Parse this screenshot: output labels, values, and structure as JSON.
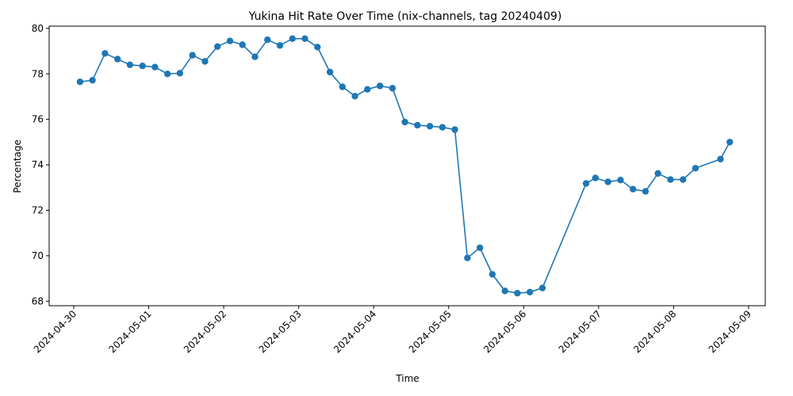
{
  "chart_data": {
    "type": "line",
    "title": "Yukina Hit Rate Over Time (nix-channels, tag 20240409)",
    "xlabel": "Time",
    "ylabel": "Percentage",
    "xlim": [
      "2024-04-29T16:08",
      "2024-05-09T05:20"
    ],
    "ylim": [
      67.8,
      80.1
    ],
    "x_ticks": [
      "2024-04-30",
      "2024-05-01",
      "2024-05-02",
      "2024-05-03",
      "2024-05-04",
      "2024-05-05",
      "2024-05-06",
      "2024-05-07",
      "2024-05-08",
      "2024-05-09"
    ],
    "y_ticks": [
      68,
      70,
      72,
      74,
      76,
      78,
      80
    ],
    "grid": false,
    "line_color": "#1f77b4",
    "marker": "circle",
    "series": [
      {
        "x": [
          "2024-04-30T02:00",
          "2024-04-30T06:00",
          "2024-04-30T10:00",
          "2024-04-30T14:00",
          "2024-04-30T18:00",
          "2024-04-30T22:00",
          "2024-05-01T02:00",
          "2024-05-01T06:00",
          "2024-05-01T10:00",
          "2024-05-01T14:00",
          "2024-05-01T18:00",
          "2024-05-01T22:00",
          "2024-05-02T02:00",
          "2024-05-02T06:00",
          "2024-05-02T10:00",
          "2024-05-02T14:00",
          "2024-05-02T18:00",
          "2024-05-02T22:00",
          "2024-05-03T02:00",
          "2024-05-03T06:00",
          "2024-05-03T10:00",
          "2024-05-03T14:00",
          "2024-05-03T18:00",
          "2024-05-03T22:00",
          "2024-05-04T02:00",
          "2024-05-04T06:00",
          "2024-05-04T10:00",
          "2024-05-04T14:00",
          "2024-05-04T18:00",
          "2024-05-04T22:00",
          "2024-05-05T02:00",
          "2024-05-05T06:00",
          "2024-05-05T10:00",
          "2024-05-05T14:00",
          "2024-05-05T18:00",
          "2024-05-05T22:00",
          "2024-05-06T02:00",
          "2024-05-06T06:00",
          "2024-05-06T20:00",
          "2024-05-06T23:00",
          "2024-05-07T03:00",
          "2024-05-07T07:00",
          "2024-05-07T11:00",
          "2024-05-07T15:00",
          "2024-05-07T19:00",
          "2024-05-07T23:00",
          "2024-05-08T03:00",
          "2024-05-08T07:00",
          "2024-05-08T15:00",
          "2024-05-08T18:00"
        ],
        "values": [
          77.65,
          77.72,
          78.9,
          78.65,
          78.4,
          78.35,
          78.3,
          78.0,
          78.03,
          78.82,
          78.55,
          79.2,
          79.45,
          79.28,
          78.75,
          79.5,
          79.25,
          79.55,
          79.55,
          79.18,
          78.08,
          77.43,
          77.02,
          77.32,
          77.47,
          77.37,
          75.88,
          75.74,
          75.7,
          75.65,
          75.55,
          69.9,
          70.35,
          69.18,
          68.45,
          68.35,
          68.4,
          68.58,
          73.18,
          73.42,
          73.25,
          73.33,
          72.93,
          72.83,
          73.62,
          73.35,
          73.35,
          73.85,
          74.25,
          75.0
        ]
      }
    ]
  }
}
